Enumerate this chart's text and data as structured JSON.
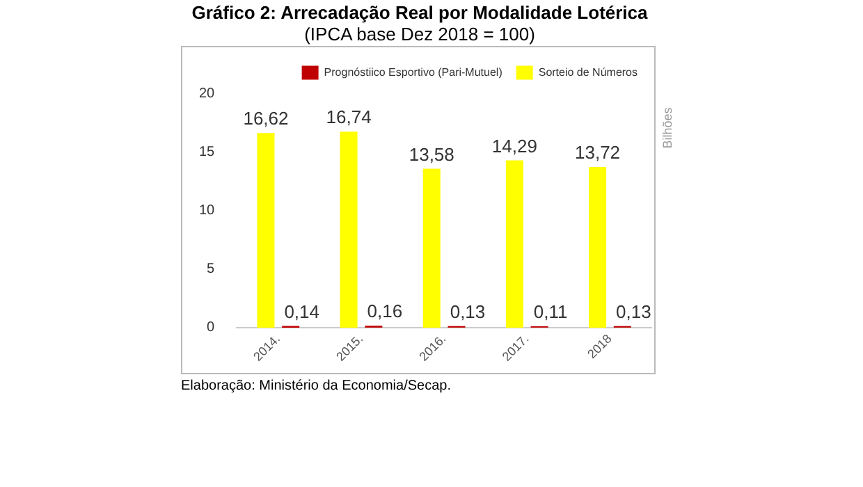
{
  "chart_data": {
    "type": "bar",
    "title": "Gráfico 2: Arrecadação Real por Modalidade Lotérica",
    "subtitle": "(IPCA base Dez 2018 = 100)",
    "ylabel": "Bilhões",
    "categories": [
      "2014.",
      "2015.",
      "2016.",
      "2017.",
      "2018"
    ],
    "series": [
      {
        "name": "Sorteio de Números",
        "color": "#ffff00",
        "values": [
          16.62,
          16.74,
          13.58,
          14.29,
          13.72
        ],
        "value_labels": [
          "16,62",
          "16,74",
          "13,58",
          "14,29",
          "13,72"
        ]
      },
      {
        "name": "Prognóstiico Esportivo (Pari-Mutuel)",
        "color": "#c00000",
        "values": [
          0.14,
          0.16,
          0.13,
          0.11,
          0.13
        ],
        "value_labels": [
          "0,14",
          "0,16",
          "0,13",
          "0,11",
          "0,13"
        ]
      }
    ],
    "ylim": [
      0,
      20
    ],
    "yticks": [
      0,
      5,
      10,
      15,
      20
    ],
    "grid": false,
    "legend": "top right",
    "annotations": [
      "Elaboração: Ministério da Economia/Secap."
    ]
  }
}
